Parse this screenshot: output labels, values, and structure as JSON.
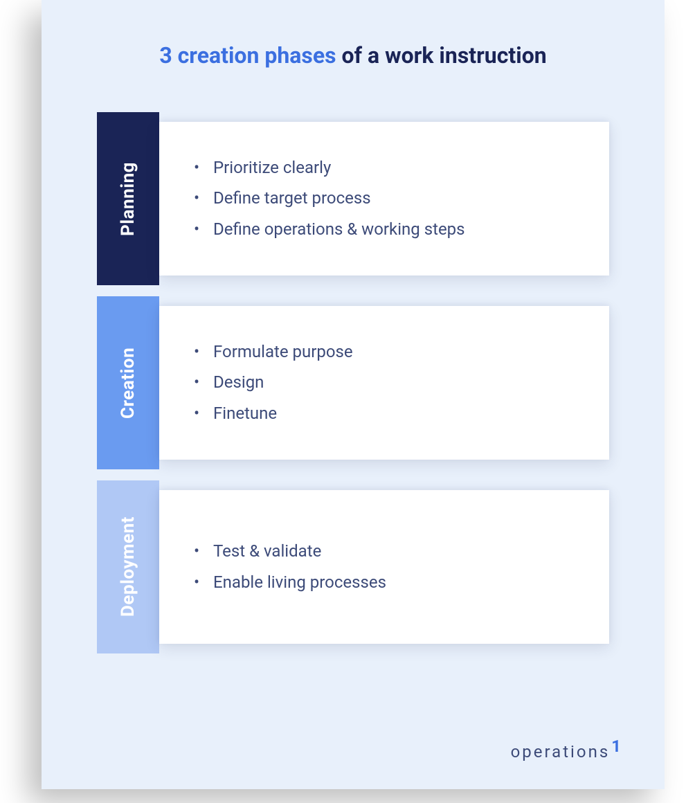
{
  "type": "infographic",
  "card": {
    "background_color": "#e8f0fb",
    "shadow_color": "rgba(0,0,0,0.25)"
  },
  "title": {
    "highlight_text": "3 creation phases",
    "rest_text": " of a work instruction",
    "highlight_color": "#3b6fe0",
    "rest_color": "#1a2456",
    "fontsize": 32,
    "fontweight": 700
  },
  "body_text_color": "#3c4a78",
  "phases": [
    {
      "label": "Planning",
      "tab_color": "#1a2456",
      "items": [
        "Prioritize clearly",
        "Define target process",
        "Define operations & working steps"
      ]
    },
    {
      "label": "Creation",
      "tab_color": "#6a9bf0",
      "items": [
        "Formulate purpose",
        "Design",
        "Finetune"
      ]
    },
    {
      "label": "Deployment",
      "tab_color": "#b0c8f5",
      "items": [
        "Test & validate",
        "Enable living processes"
      ]
    }
  ],
  "logo": {
    "text": "operations",
    "sup": "1",
    "text_color": "#3c4a78",
    "accent_color": "#3b6fe0",
    "fontsize": 24,
    "letter_spacing": 3
  }
}
